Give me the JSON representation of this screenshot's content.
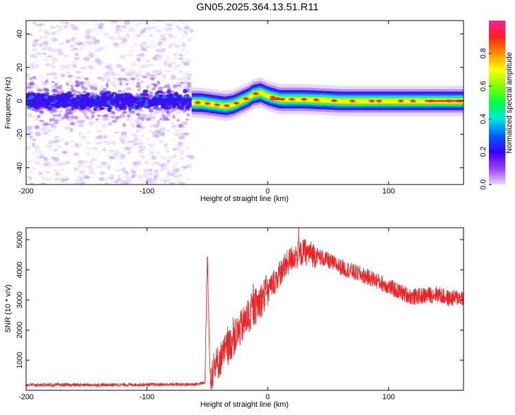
{
  "title": "GN05.2025.364.13.51.R11",
  "chart_data": [
    {
      "type": "heatmap",
      "xlabel": "Height of straight line (km)",
      "ylabel": "Frequency (Hz)",
      "xlim": [
        -200,
        162
      ],
      "ylim": [
        -50,
        48
      ],
      "xticks": [
        -200,
        -100,
        0,
        100
      ],
      "yticks": [
        -40,
        -20,
        0,
        20,
        40
      ],
      "colorbar": {
        "label": "Normalized spectral amplitude",
        "range": [
          0,
          1
        ],
        "ticks": [
          "0.0",
          "0.2",
          "0.4",
          "0.6",
          "0.8"
        ],
        "colors": [
          "#e8d8ff",
          "#9a3cff",
          "#3a00ff",
          "#0060ff",
          "#00e6e6",
          "#00ff40",
          "#80ff00",
          "#ffff00",
          "#ff9000",
          "#ff2020",
          "#ff2090"
        ]
      },
      "noise_region_end_km": -63,
      "ridge": [
        {
          "x": -63,
          "y": -1
        },
        {
          "x": -55,
          "y": -1
        },
        {
          "x": -45,
          "y": -2
        },
        {
          "x": -35,
          "y": -3
        },
        {
          "x": -28,
          "y": -2
        },
        {
          "x": -22,
          "y": 0
        },
        {
          "x": -16,
          "y": 2
        },
        {
          "x": -12,
          "y": 4
        },
        {
          "x": -6,
          "y": 5
        },
        {
          "x": 0,
          "y": 3
        },
        {
          "x": 10,
          "y": 1
        },
        {
          "x": 30,
          "y": 1
        },
        {
          "x": 60,
          "y": 0
        },
        {
          "x": 100,
          "y": 0
        },
        {
          "x": 162,
          "y": 0
        }
      ]
    },
    {
      "type": "line",
      "xlabel": "Height of straight line (km)",
      "ylabel": "SNR (10 * v/v)",
      "xlim": [
        -200,
        162
      ],
      "ylim": [
        0,
        5400
      ],
      "xticks": [
        -200,
        -100,
        0,
        100
      ],
      "yticks": [
        1000,
        2000,
        3000,
        4000,
        5000
      ],
      "color": "#ee2222",
      "series_envelope": [
        {
          "x": -200,
          "y": 180
        },
        {
          "x": -150,
          "y": 180
        },
        {
          "x": -100,
          "y": 190
        },
        {
          "x": -60,
          "y": 200
        },
        {
          "x": -52,
          "y": 250
        },
        {
          "x": -50,
          "y": 1500
        },
        {
          "x": -48,
          "y": 500
        },
        {
          "x": -40,
          "y": 1000
        },
        {
          "x": -30,
          "y": 1600
        },
        {
          "x": -20,
          "y": 2200
        },
        {
          "x": -10,
          "y": 2800
        },
        {
          "x": 0,
          "y": 3300
        },
        {
          "x": 10,
          "y": 3900
        },
        {
          "x": 20,
          "y": 4400
        },
        {
          "x": 30,
          "y": 4600
        },
        {
          "x": 40,
          "y": 4500
        },
        {
          "x": 50,
          "y": 4300
        },
        {
          "x": 60,
          "y": 4100
        },
        {
          "x": 70,
          "y": 3950
        },
        {
          "x": 80,
          "y": 3800
        },
        {
          "x": 90,
          "y": 3650
        },
        {
          "x": 100,
          "y": 3450
        },
        {
          "x": 110,
          "y": 3250
        },
        {
          "x": 120,
          "y": 3100
        },
        {
          "x": 130,
          "y": 3150
        },
        {
          "x": 140,
          "y": 3200
        },
        {
          "x": 150,
          "y": 3050
        },
        {
          "x": 162,
          "y": 3100
        }
      ]
    }
  ]
}
